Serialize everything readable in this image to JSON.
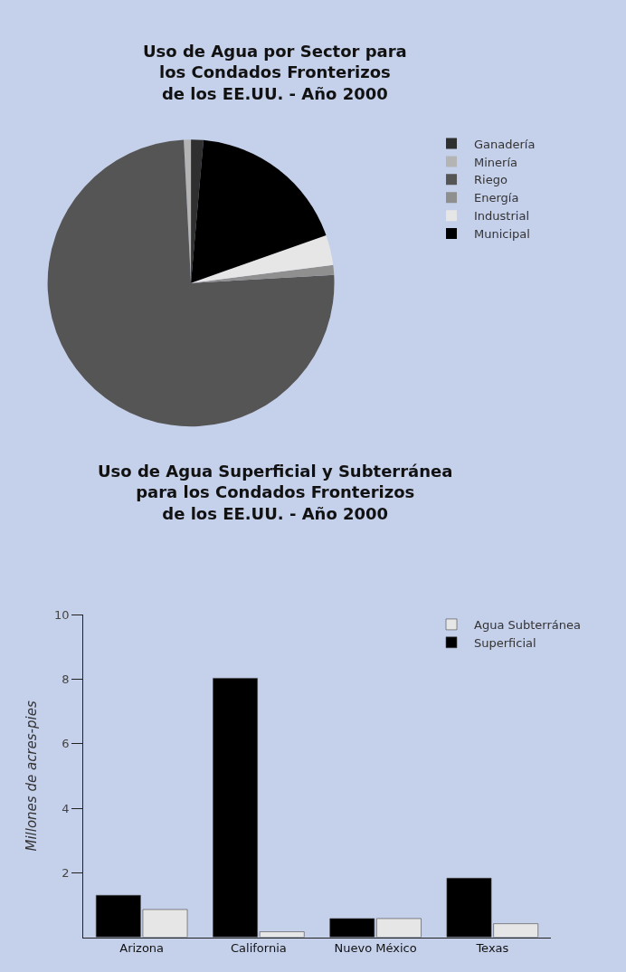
{
  "chart_data": [
    {
      "type": "pie",
      "title": "Uso de Agua por Sector para\nlos Condados Fronterizos\nde los EE.UU. - Año 2000",
      "categories": [
        "Ganadería",
        "Minería",
        "Riego",
        "Energía",
        "Industrial",
        "Municipal"
      ],
      "values": [
        1.4,
        0.8,
        75.1,
        1.1,
        3.4,
        18.2
      ],
      "colors": [
        "#2f2f2f",
        "#b4b4b4",
        "#555555",
        "#8f8f8f",
        "#e6e6e6",
        "#000000"
      ],
      "legend": "right"
    },
    {
      "type": "bar",
      "title": "Uso de Agua Superficial y Subterránea\npara los Condados Fronterizos\nde los EE.UU. - Año 2000",
      "ylabel": "Millones de acres-pies",
      "categories": [
        "Arizona",
        "California",
        "Nuevo México",
        "Texas"
      ],
      "series": [
        {
          "name": "Superficial",
          "color": "#000000",
          "values": [
            1.3,
            8.03,
            0.58,
            1.83
          ]
        },
        {
          "name": "Agua Subterránea",
          "color": "#e6e6e6",
          "values": [
            0.86,
            0.17,
            0.58,
            0.42
          ]
        }
      ],
      "ylim": [
        0,
        10
      ],
      "yticks": [
        2,
        4,
        6,
        8,
        10
      ],
      "legend": "top right",
      "grid": false
    }
  ]
}
